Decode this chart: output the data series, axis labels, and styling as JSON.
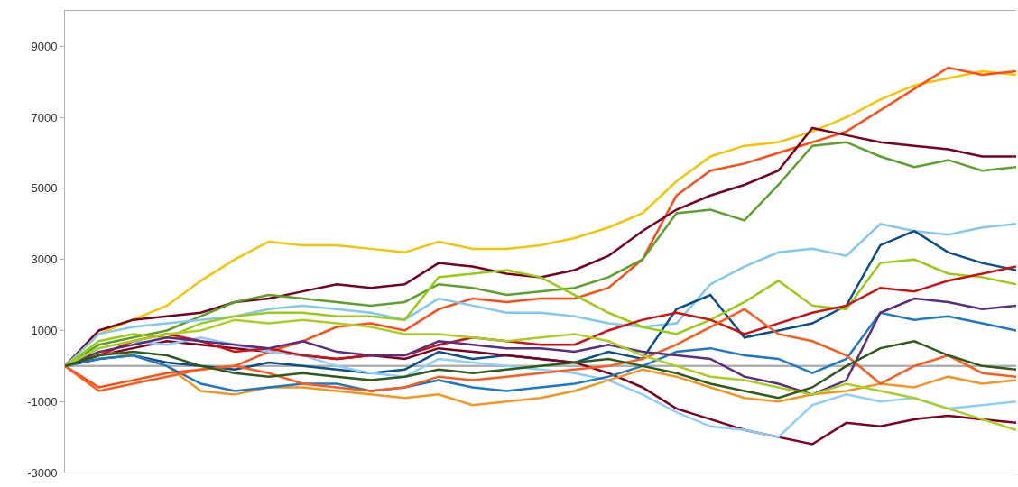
{
  "chart_data": {
    "type": "line",
    "categories": [
      null,
      null,
      null,
      null,
      null,
      null,
      null,
      null,
      null,
      null,
      null,
      null,
      null,
      null,
      null,
      null,
      null,
      null,
      null,
      null,
      null,
      null,
      null,
      null,
      null,
      null,
      null,
      null,
      null
    ],
    "ylim": [
      -3000,
      10000
    ],
    "yticks": [
      -3000,
      -1000,
      1000,
      3000,
      5000,
      7000,
      9000
    ],
    "grid": false,
    "marker": "none",
    "line_style": "solid",
    "tick_labels": "y",
    "ref_lines": [
      {
        "axis": "y",
        "value": 0,
        "color": "#b0b0b0"
      }
    ],
    "series": [
      {
        "color": "#f5c400",
        "values": [
          0,
          900,
          1300,
          1700,
          2400,
          3000,
          3500,
          3400,
          3400,
          3300,
          3200,
          3500,
          3300,
          3300,
          3400,
          3600,
          3900,
          4300,
          5200,
          5900,
          6200,
          6300,
          6600,
          7000,
          7500,
          7900,
          8100,
          8300,
          8200
        ]
      },
      {
        "color": "#ff4a12",
        "values": [
          0,
          -600,
          -400,
          -200,
          -100,
          0,
          400,
          700,
          1100,
          1200,
          1000,
          1600,
          1900,
          1800,
          1900,
          1900,
          2200,
          3000,
          4800,
          5500,
          5700,
          6000,
          6300,
          6600,
          7200,
          7800,
          8400,
          8200,
          8300
        ]
      },
      {
        "color": "#7a0020",
        "values": [
          0,
          1000,
          1300,
          1400,
          1500,
          1800,
          1900,
          2100,
          2300,
          2200,
          2300,
          2900,
          2800,
          2600,
          2500,
          2700,
          3100,
          3800,
          4400,
          4800,
          5100,
          5500,
          6700,
          6500,
          6300,
          6200,
          6100,
          5900,
          5900
        ]
      },
      {
        "color": "#5aa02a",
        "values": [
          0,
          600,
          800,
          1000,
          1400,
          1800,
          2000,
          1900,
          1800,
          1700,
          1800,
          2300,
          2200,
          2000,
          2100,
          2200,
          2500,
          3000,
          4300,
          4400,
          4100,
          5100,
          6200,
          6300,
          5900,
          5600,
          5800,
          5500,
          5600
        ]
      },
      {
        "color": "#80c8f0",
        "values": [
          0,
          900,
          1100,
          1200,
          1300,
          1400,
          1600,
          1700,
          1600,
          1500,
          1300,
          1900,
          1700,
          1500,
          1500,
          1400,
          1200,
          1100,
          1200,
          2300,
          2800,
          3200,
          3300,
          3100,
          4000,
          3800,
          3700,
          3900,
          4000
        ]
      },
      {
        "color": "#0a4f8c",
        "values": [
          0,
          200,
          300,
          100,
          0,
          -100,
          100,
          0,
          -100,
          -200,
          -100,
          400,
          200,
          300,
          200,
          100,
          400,
          200,
          1600,
          2000,
          800,
          1000,
          1200,
          1700,
          3400,
          3800,
          3200,
          2900,
          2700
        ]
      },
      {
        "color": "#99cc11",
        "values": [
          0,
          700,
          900,
          800,
          1200,
          1400,
          1500,
          1500,
          1400,
          1400,
          1300,
          2500,
          2600,
          2700,
          2500,
          2000,
          1500,
          1100,
          900,
          1300,
          1800,
          2400,
          1700,
          1600,
          2900,
          3000,
          2600,
          2500,
          2300
        ]
      },
      {
        "color": "#800020",
        "values": [
          0,
          300,
          500,
          700,
          600,
          500,
          400,
          300,
          200,
          300,
          200,
          500,
          400,
          300,
          200,
          100,
          -200,
          -600,
          -1200,
          -1500,
          -1800,
          -2000,
          -2200,
          -1600,
          -1700,
          -1500,
          -1400,
          -1500,
          -1600
        ]
      },
      {
        "color": "#8ccfff",
        "values": [
          0,
          500,
          700,
          600,
          800,
          600,
          400,
          300,
          0,
          -200,
          -300,
          200,
          100,
          0,
          -100,
          -200,
          -400,
          -800,
          -1300,
          -1700,
          -1800,
          -2000,
          -1100,
          -800,
          -1000,
          -900,
          -1200,
          -1100,
          -1000
        ]
      },
      {
        "color": "#f7941d",
        "values": [
          0,
          400,
          300,
          0,
          -700,
          -800,
          -600,
          -600,
          -700,
          -800,
          -900,
          -800,
          -1100,
          -1000,
          -900,
          -700,
          -400,
          -100,
          -300,
          -600,
          -900,
          -1000,
          -800,
          -700,
          -500,
          -600,
          -300,
          -500,
          -400
        ]
      },
      {
        "color": "#1a7ac8",
        "values": [
          0,
          200,
          300,
          0,
          -500,
          -700,
          -600,
          -500,
          -500,
          -700,
          -600,
          -400,
          -600,
          -700,
          -600,
          -500,
          -300,
          0,
          400,
          500,
          300,
          200,
          -200,
          200,
          1500,
          1300,
          1400,
          1200,
          1000
        ]
      },
      {
        "color": "#d01010",
        "values": [
          0,
          300,
          700,
          900,
          700,
          400,
          500,
          300,
          200,
          300,
          300,
          600,
          800,
          700,
          600,
          600,
          1000,
          1300,
          1500,
          1300,
          900,
          1200,
          1500,
          1700,
          2200,
          2100,
          2400,
          2600,
          2800
        ]
      },
      {
        "color": "#ff5a1a",
        "values": [
          0,
          -700,
          -500,
          -300,
          -100,
          0,
          -200,
          -500,
          -600,
          -700,
          -600,
          -300,
          -400,
          -300,
          -200,
          -100,
          0,
          200,
          600,
          1100,
          1600,
          900,
          700,
          300,
          -500,
          0,
          300,
          -200,
          -300
        ]
      },
      {
        "color": "#5a2d82",
        "values": [
          0,
          400,
          600,
          800,
          700,
          600,
          500,
          700,
          400,
          300,
          300,
          700,
          600,
          500,
          500,
          400,
          600,
          400,
          300,
          200,
          -300,
          -500,
          -800,
          -400,
          1500,
          1900,
          1800,
          1600,
          1700
        ]
      },
      {
        "color": "#a8d020",
        "values": [
          0,
          500,
          700,
          900,
          1000,
          1300,
          1200,
          1300,
          1200,
          1100,
          900,
          900,
          800,
          700,
          800,
          900,
          700,
          300,
          0,
          -300,
          -400,
          -600,
          -800,
          -500,
          -700,
          -900,
          -1200,
          -1500,
          -1800
        ]
      },
      {
        "color": "#2e5a1a",
        "values": [
          0,
          300,
          400,
          300,
          0,
          -200,
          -300,
          -200,
          -300,
          -400,
          -300,
          -100,
          -200,
          -100,
          0,
          100,
          200,
          0,
          -200,
          -500,
          -700,
          -900,
          -600,
          0,
          500,
          700,
          300,
          0,
          -100
        ]
      }
    ]
  }
}
